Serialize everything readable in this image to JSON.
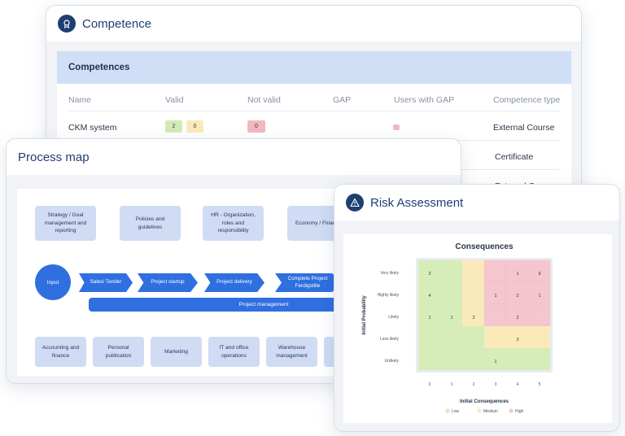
{
  "competence": {
    "title": "Competence",
    "banner": "Competences",
    "headers": [
      "Name",
      "Valid",
      "Not valid",
      "GAP",
      "Users with GAP",
      "Competence type"
    ],
    "rows": [
      {
        "name": "CKM system",
        "valid_a": "2",
        "valid_b": "0",
        "not_valid": "0",
        "type": "External Course"
      },
      {
        "type": "Certificate"
      },
      {
        "type": "External Course"
      }
    ]
  },
  "process": {
    "title": "Process map",
    "top_boxes": [
      "Strategy / Goal management and reporting",
      "Policies and guidelines",
      "HR - Organization, roles and responsibility",
      "Economy / Finance"
    ],
    "input_label": "Input",
    "steps": [
      "Sales/ Tender",
      "Project startup",
      "Project delivery",
      "Complete Project Ferdigstille"
    ],
    "bar_label": "Project management",
    "bottom_boxes": [
      "Accounting and finance",
      "Personal publication",
      "Marketing",
      "IT and office operations",
      "Warehouse management"
    ]
  },
  "risk": {
    "title": "Risk Assessment",
    "chart_data": {
      "type": "heatmap",
      "title": "Consequences",
      "xlabel": "Initial Consequences",
      "ylabel": "Initial Probability",
      "x_ticks": [
        "0",
        "1",
        "2",
        "3",
        "4",
        "5"
      ],
      "y_ticks": [
        "Very likely",
        "Highly likely",
        "Likely",
        "Less likely",
        "Unlikely"
      ],
      "levels": [
        [
          "low",
          "low",
          "medium",
          "high",
          "high",
          "high"
        ],
        [
          "low",
          "low",
          "medium",
          "high",
          "high",
          "high"
        ],
        [
          "low",
          "low",
          "medium",
          "high",
          "high",
          "high"
        ],
        [
          "low",
          "low",
          "low",
          "medium",
          "medium",
          "medium"
        ],
        [
          "low",
          "low",
          "low",
          "low",
          "low",
          "low"
        ]
      ],
      "values": [
        [
          "2",
          "",
          "",
          "",
          "1",
          "9"
        ],
        [
          "4",
          "",
          "",
          "1",
          "2",
          "1"
        ],
        [
          "1",
          "1",
          "2",
          "",
          "2",
          ""
        ],
        [
          "",
          "",
          "",
          "",
          "3",
          ""
        ],
        [
          "",
          "",
          "",
          "1",
          "",
          ""
        ]
      ],
      "legend": [
        {
          "key": "low",
          "label": "Low"
        },
        {
          "key": "medium",
          "label": "Medium"
        },
        {
          "key": "high",
          "label": "High"
        }
      ],
      "colors": {
        "low": "#d6ecb9",
        "medium": "#fbeab9",
        "high": "#f4c6ce"
      }
    }
  },
  "colors": {
    "navy": "#1e3f73",
    "accent_blue": "#2f6fe0",
    "box_blue": "#cfdcf3",
    "chip_green": "#d3eab7",
    "chip_yellow": "#fbeab9",
    "chip_red": "#f2b8c1"
  }
}
